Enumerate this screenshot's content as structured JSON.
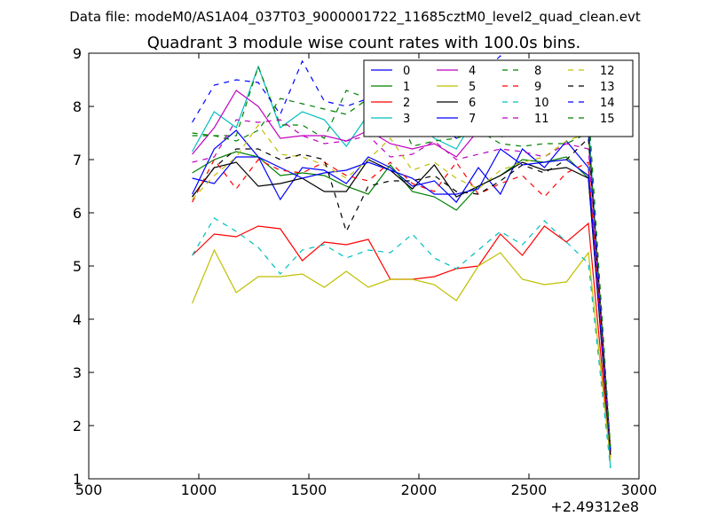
{
  "chart_data": {
    "type": "line",
    "suptitle": "Data file: modeM0/AS1A04_037T03_9000001722_11685cztM0_level2_quad_clean.evt",
    "title": "Quadrant 3 module wise count rates with 100.0s bins.",
    "xlabel": "",
    "ylabel": "",
    "x_offset_label": "+2.49312e8",
    "xlim": [
      500,
      3000
    ],
    "ylim": [
      1,
      9
    ],
    "xticks": [
      500,
      1000,
      1500,
      2000,
      2500,
      3000
    ],
    "yticks": [
      1,
      2,
      3,
      4,
      5,
      6,
      7,
      8,
      9
    ],
    "legend_position": "top-right",
    "legend_columns": 4,
    "x": [
      970,
      1070,
      1170,
      1270,
      1370,
      1470,
      1570,
      1670,
      1770,
      1870,
      1970,
      2070,
      2170,
      2270,
      2370,
      2470,
      2570,
      2670,
      2770,
      2870
    ],
    "series": [
      {
        "name": "0",
        "color": "#0000ff",
        "dash": "solid",
        "values": [
          6.65,
          6.55,
          7.05,
          7.05,
          6.25,
          6.85,
          6.8,
          6.55,
          7.05,
          6.85,
          6.5,
          6.6,
          6.2,
          6.85,
          6.35,
          7.2,
          6.85,
          7.35,
          6.85,
          1.5
        ]
      },
      {
        "name": "1",
        "color": "#008000",
        "dash": "solid",
        "values": [
          6.75,
          7.0,
          7.15,
          7.05,
          6.7,
          6.75,
          6.7,
          6.5,
          6.35,
          6.9,
          6.4,
          6.3,
          6.05,
          6.5,
          6.7,
          7.0,
          6.95,
          7.05,
          6.65,
          1.45
        ]
      },
      {
        "name": "2",
        "color": "#ff0000",
        "dash": "solid",
        "values": [
          5.2,
          5.6,
          5.55,
          5.75,
          5.7,
          5.1,
          5.45,
          5.4,
          5.5,
          4.75,
          4.75,
          4.8,
          4.95,
          5.0,
          5.6,
          5.2,
          5.75,
          5.45,
          5.8,
          1.4
        ]
      },
      {
        "name": "3",
        "color": "#00bfbf",
        "dash": "solid",
        "values": [
          7.15,
          7.9,
          7.6,
          8.75,
          7.6,
          7.9,
          7.75,
          7.25,
          7.85,
          7.9,
          7.75,
          7.4,
          7.2,
          7.9,
          7.5,
          7.85,
          7.75,
          8.45,
          7.75,
          1.2
        ]
      },
      {
        "name": "4",
        "color": "#bf00bf",
        "dash": "solid",
        "values": [
          7.1,
          7.6,
          8.3,
          8.0,
          7.4,
          7.45,
          7.45,
          7.35,
          7.55,
          7.3,
          7.2,
          7.3,
          7.05,
          7.55,
          7.75,
          7.75,
          7.6,
          7.8,
          7.55,
          1.55
        ]
      },
      {
        "name": "5",
        "color": "#bfbf00",
        "dash": "solid",
        "values": [
          4.3,
          5.3,
          4.5,
          4.8,
          4.8,
          4.85,
          4.6,
          4.9,
          4.6,
          4.75,
          4.75,
          4.65,
          4.35,
          5.0,
          5.25,
          4.75,
          4.65,
          4.7,
          5.25,
          1.35
        ]
      },
      {
        "name": "6",
        "color": "#000000",
        "dash": "solid",
        "values": [
          6.3,
          6.85,
          6.95,
          6.5,
          6.55,
          6.65,
          6.4,
          6.4,
          7.0,
          6.8,
          6.45,
          6.9,
          6.3,
          6.5,
          6.7,
          6.95,
          6.8,
          6.85,
          6.65,
          1.45
        ]
      },
      {
        "name": "7",
        "color": "#0000ff",
        "dash": "solid",
        "values": [
          6.35,
          7.2,
          7.55,
          7.05,
          6.85,
          6.65,
          6.75,
          6.8,
          6.95,
          6.8,
          6.65,
          6.35,
          6.35,
          6.45,
          7.2,
          6.9,
          6.95,
          7.0,
          6.7,
          1.55
        ]
      },
      {
        "name": "8",
        "color": "#008000",
        "dash": "dashed",
        "values": [
          7.45,
          7.45,
          7.45,
          8.75,
          7.65,
          7.65,
          7.4,
          8.3,
          8.15,
          8.2,
          7.25,
          7.35,
          7.4,
          7.55,
          7.3,
          7.25,
          7.3,
          7.3,
          7.5,
          1.6
        ]
      },
      {
        "name": "9",
        "color": "#ff0000",
        "dash": "dashed",
        "values": [
          6.2,
          7.0,
          6.45,
          7.0,
          6.8,
          6.75,
          6.95,
          6.7,
          6.6,
          6.95,
          6.55,
          6.4,
          6.95,
          6.35,
          6.55,
          6.7,
          6.3,
          6.75,
          6.95,
          1.5
        ]
      },
      {
        "name": "10",
        "color": "#00bfbf",
        "dash": "dashed",
        "values": [
          5.2,
          5.9,
          5.65,
          5.35,
          4.85,
          5.3,
          5.4,
          5.15,
          5.3,
          5.25,
          5.6,
          5.15,
          4.95,
          5.3,
          5.65,
          5.4,
          5.85,
          5.45,
          5.05,
          1.2
        ]
      },
      {
        "name": "11",
        "color": "#bf00bf",
        "dash": "dashed",
        "values": [
          6.95,
          7.05,
          7.75,
          7.7,
          7.75,
          7.45,
          7.3,
          7.35,
          7.45,
          7.05,
          7.1,
          7.35,
          7.0,
          7.1,
          7.2,
          7.15,
          7.05,
          7.3,
          7.2,
          1.55
        ]
      },
      {
        "name": "12",
        "color": "#bfbf00",
        "dash": "dashed",
        "values": [
          6.25,
          6.7,
          7.05,
          7.65,
          7.1,
          7.05,
          6.9,
          6.65,
          7.0,
          7.4,
          6.8,
          6.95,
          6.65,
          6.45,
          6.8,
          6.95,
          7.05,
          7.35,
          7.5,
          1.45
        ]
      },
      {
        "name": "13",
        "color": "#000000",
        "dash": "dashed",
        "values": [
          6.3,
          6.85,
          7.2,
          7.2,
          7.0,
          7.1,
          7.0,
          5.65,
          6.5,
          6.6,
          6.6,
          6.7,
          6.4,
          6.35,
          6.6,
          6.9,
          6.75,
          7.0,
          7.4,
          1.5
        ]
      },
      {
        "name": "14",
        "color": "#0000ff",
        "dash": "dashed",
        "values": [
          7.7,
          8.4,
          8.5,
          8.45,
          7.85,
          8.85,
          8.1,
          8.0,
          8.15,
          7.9,
          7.95,
          7.75,
          7.4,
          8.55,
          8.95,
          8.4,
          8.5,
          8.15,
          7.6,
          1.5
        ]
      },
      {
        "name": "15",
        "color": "#008000",
        "dash": "dashed",
        "values": [
          7.5,
          7.45,
          7.35,
          7.55,
          8.15,
          8.05,
          7.95,
          7.85,
          8.15,
          7.55,
          7.65,
          8.1,
          7.6,
          7.7,
          7.4,
          7.75,
          7.85,
          8.3,
          8.0,
          1.6
        ]
      }
    ]
  }
}
